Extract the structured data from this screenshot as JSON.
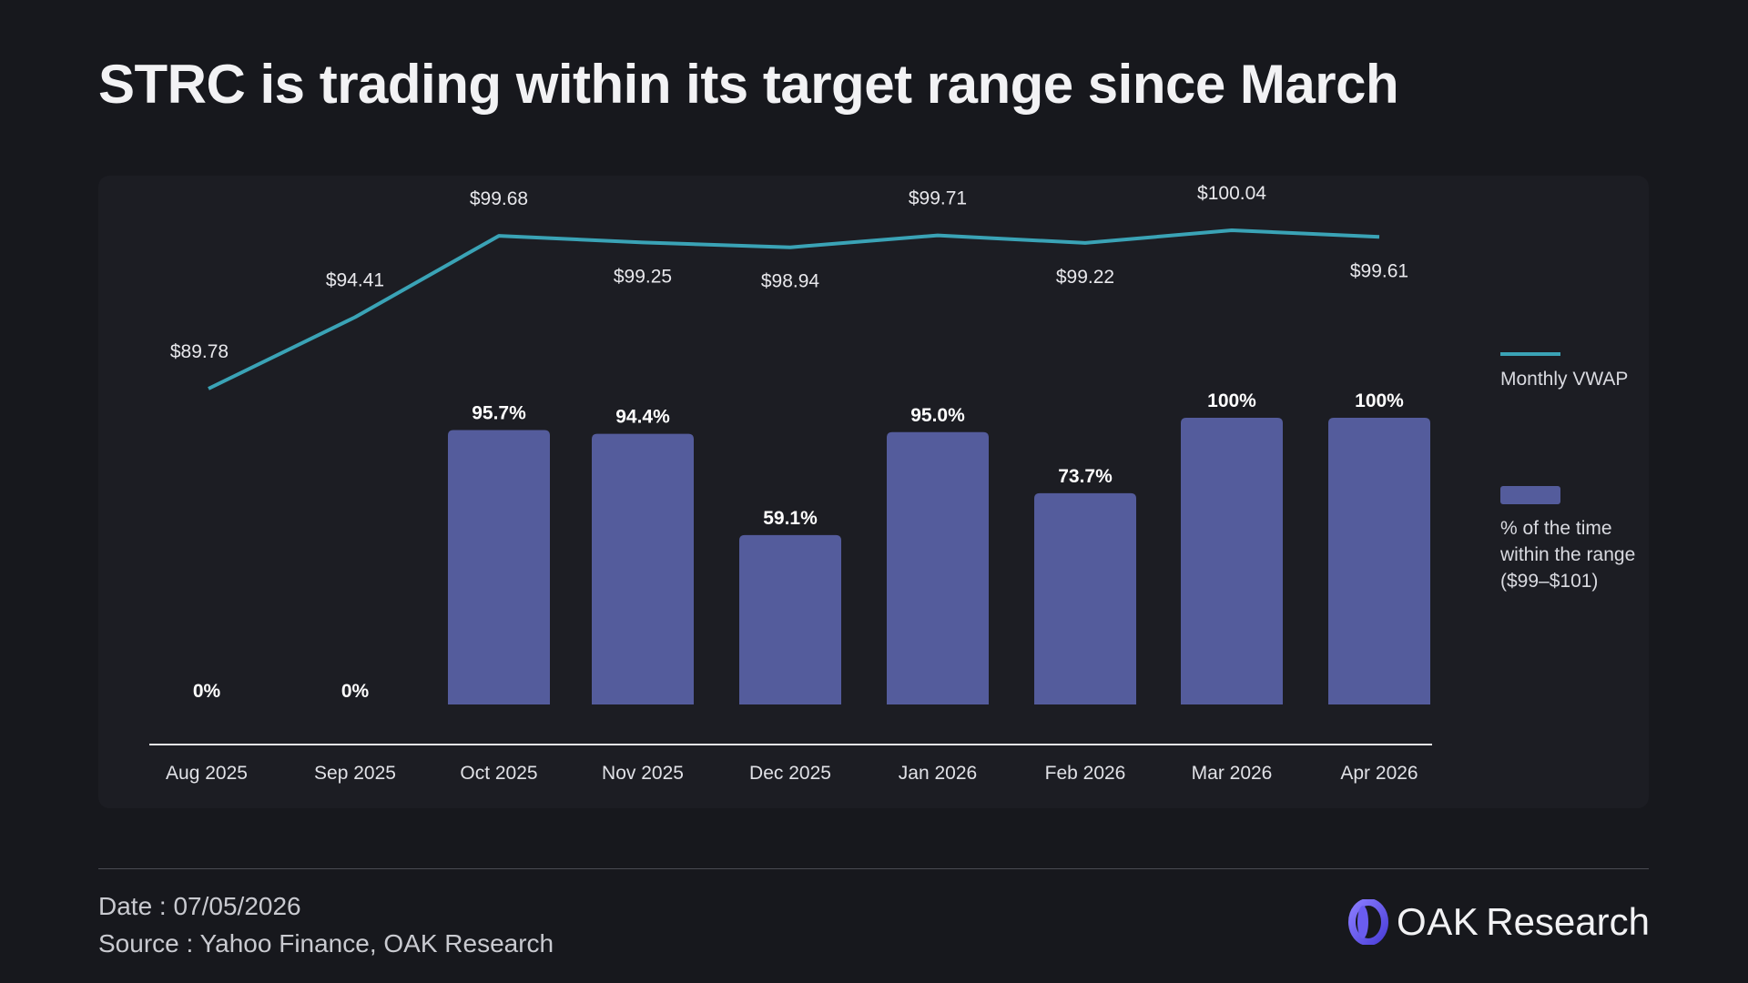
{
  "title": "STRC is trading within its target range since March",
  "chart_data": {
    "type": "bar",
    "categories": [
      "Aug 2025",
      "Sep 2025",
      "Oct 2025",
      "Nov 2025",
      "Dec 2025",
      "Jan 2026",
      "Feb 2026",
      "Mar 2026",
      "Apr 2026"
    ],
    "series": [
      {
        "name": "Monthly VWAP",
        "type": "line",
        "values": [
          89.78,
          94.41,
          99.68,
          99.25,
          98.94,
          99.71,
          99.22,
          100.04,
          99.61
        ],
        "labels": [
          "$89.78",
          "$94.41",
          "$99.68",
          "$99.25",
          "$98.94",
          "$99.71",
          "$99.22",
          "$100.04",
          "$99.61"
        ],
        "color": "#3aa3b6"
      },
      {
        "name": "% of the time within the range ($99–$101)",
        "type": "bar",
        "values": [
          0,
          0,
          95.7,
          94.4,
          59.1,
          95.0,
          73.7,
          100,
          100
        ],
        "labels": [
          "0%",
          "0%",
          "95.7%",
          "94.4%",
          "59.1%",
          "95.0%",
          "73.7%",
          "100%",
          "100%"
        ],
        "color": "#545c9c"
      }
    ],
    "bar_ylim": [
      0,
      100
    ],
    "line_ylim": [
      89.78,
      100.04
    ],
    "grid": false,
    "legend_position": "right"
  },
  "legend": {
    "line_label": "Monthly VWAP",
    "bar_label": "% of the time within the range ($99–$101)"
  },
  "footer": {
    "date": "Date : 07/05/2026",
    "source": "Source : Yahoo Finance, OAK Research"
  },
  "brand": {
    "name_strong": "OAK",
    "name_light": "Research",
    "logo_icon": "oak-logo-icon"
  },
  "colors": {
    "background": "#17181d",
    "panel": "#1c1d23",
    "line": "#3aa3b6",
    "bar": "#545c9c"
  }
}
